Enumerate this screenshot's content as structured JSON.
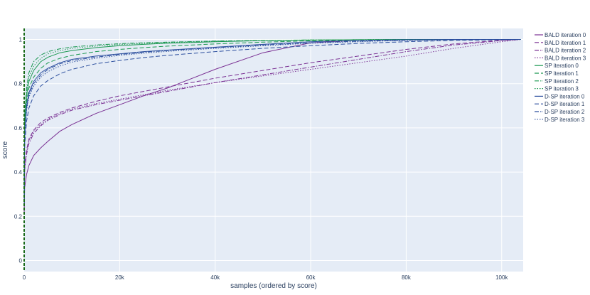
{
  "chart_data": {
    "type": "line",
    "xlabel": "samples (ordered by score)",
    "ylabel": "score",
    "x_tick_labels": [
      "0",
      "20k",
      "40k",
      "60k",
      "80k",
      "100k"
    ],
    "x_ticks": [
      0,
      20000,
      40000,
      60000,
      80000,
      100000
    ],
    "y_tick_labels": [
      "0",
      "0.2",
      "0.4",
      "0.6",
      "0.8",
      "1"
    ],
    "y_ticks": [
      0,
      0.2,
      0.4,
      0.6,
      0.8,
      1
    ],
    "xlim": [
      0,
      104500
    ],
    "ylim": [
      -0.05,
      1.05
    ],
    "grid": true,
    "legend_position": "right",
    "x": [
      0,
      100,
      500,
      1000,
      2000,
      3500,
      5000,
      7500,
      10000,
      15000,
      20000,
      25000,
      30000,
      40000,
      50000,
      60000,
      70000,
      80000,
      90000,
      100000,
      104000
    ],
    "series": [
      {
        "name": "BALD iteration 0",
        "color": "#7b3294",
        "dash": "solid",
        "values": [
          0.21,
          0.33,
          0.39,
          0.43,
          0.475,
          0.51,
          0.54,
          0.585,
          0.615,
          0.665,
          0.705,
          0.745,
          0.78,
          0.865,
          0.94,
          0.985,
          0.997,
          0.999,
          1.0,
          1.0,
          1.0
        ]
      },
      {
        "name": "BALD iteration 1",
        "color": "#7b3294",
        "dash": "dash",
        "values": [
          0.22,
          0.43,
          0.5,
          0.55,
          0.59,
          0.625,
          0.645,
          0.67,
          0.69,
          0.72,
          0.745,
          0.765,
          0.785,
          0.825,
          0.86,
          0.895,
          0.925,
          0.955,
          0.98,
          0.997,
          1.0
        ]
      },
      {
        "name": "BALD iteration 2",
        "color": "#7b3294",
        "dash": "dashdot",
        "values": [
          0.22,
          0.41,
          0.48,
          0.53,
          0.575,
          0.61,
          0.635,
          0.66,
          0.68,
          0.705,
          0.725,
          0.745,
          0.765,
          0.805,
          0.84,
          0.875,
          0.91,
          0.945,
          0.975,
          0.995,
          1.0
        ]
      },
      {
        "name": "BALD iteration 3",
        "color": "#7b3294",
        "dash": "dot",
        "values": [
          0.22,
          0.42,
          0.49,
          0.54,
          0.585,
          0.615,
          0.64,
          0.665,
          0.685,
          0.71,
          0.73,
          0.75,
          0.77,
          0.805,
          0.835,
          0.865,
          0.895,
          0.925,
          0.96,
          0.99,
          1.0
        ]
      },
      {
        "name": "SP iteration 0",
        "color": "#1a9850",
        "dash": "solid",
        "values": [
          0.25,
          0.62,
          0.75,
          0.81,
          0.86,
          0.9,
          0.92,
          0.94,
          0.95,
          0.963,
          0.972,
          0.978,
          0.983,
          0.99,
          0.995,
          0.998,
          0.999,
          1.0,
          1.0,
          1.0,
          1.0
        ]
      },
      {
        "name": "SP iteration 1",
        "color": "#1a9850",
        "dash": "dash",
        "values": [
          0.25,
          0.6,
          0.72,
          0.78,
          0.83,
          0.87,
          0.895,
          0.915,
          0.928,
          0.945,
          0.955,
          0.963,
          0.97,
          0.98,
          0.988,
          0.994,
          0.997,
          0.999,
          1.0,
          1.0,
          1.0
        ]
      },
      {
        "name": "SP iteration 2",
        "color": "#1a9850",
        "dash": "dashdot",
        "values": [
          0.25,
          0.66,
          0.78,
          0.85,
          0.9,
          0.93,
          0.945,
          0.958,
          0.966,
          0.975,
          0.981,
          0.985,
          0.988,
          0.993,
          0.996,
          0.998,
          0.999,
          1.0,
          1.0,
          1.0,
          1.0
        ]
      },
      {
        "name": "SP iteration 3",
        "color": "#1a9850",
        "dash": "dot",
        "values": [
          0.25,
          0.64,
          0.77,
          0.83,
          0.88,
          0.915,
          0.935,
          0.95,
          0.96,
          0.97,
          0.977,
          0.982,
          0.986,
          0.992,
          0.995,
          0.998,
          0.999,
          1.0,
          1.0,
          1.0,
          1.0
        ]
      },
      {
        "name": "D-SP iteration 0",
        "color": "#2c4f9e",
        "dash": "solid",
        "values": [
          0.25,
          0.58,
          0.7,
          0.76,
          0.81,
          0.85,
          0.87,
          0.895,
          0.91,
          0.925,
          0.935,
          0.945,
          0.952,
          0.965,
          0.978,
          0.99,
          0.996,
          0.999,
          1.0,
          1.0,
          1.0
        ]
      },
      {
        "name": "D-SP iteration 1",
        "color": "#2c4f9e",
        "dash": "dash",
        "values": [
          0.25,
          0.52,
          0.63,
          0.69,
          0.745,
          0.79,
          0.815,
          0.845,
          0.865,
          0.89,
          0.905,
          0.918,
          0.928,
          0.945,
          0.96,
          0.972,
          0.982,
          0.99,
          0.996,
          0.999,
          1.0
        ]
      },
      {
        "name": "D-SP iteration 2",
        "color": "#2c4f9e",
        "dash": "dashdot",
        "values": [
          0.25,
          0.57,
          0.69,
          0.75,
          0.8,
          0.84,
          0.865,
          0.89,
          0.905,
          0.92,
          0.932,
          0.942,
          0.95,
          0.963,
          0.975,
          0.985,
          0.992,
          0.997,
          0.999,
          1.0,
          1.0
        ]
      },
      {
        "name": "D-SP iteration 3",
        "color": "#2c4f9e",
        "dash": "dot",
        "values": [
          0.25,
          0.56,
          0.68,
          0.74,
          0.79,
          0.83,
          0.855,
          0.88,
          0.898,
          0.915,
          0.928,
          0.938,
          0.946,
          0.96,
          0.972,
          0.983,
          0.99,
          0.996,
          0.999,
          1.0,
          1.0
        ]
      }
    ]
  }
}
